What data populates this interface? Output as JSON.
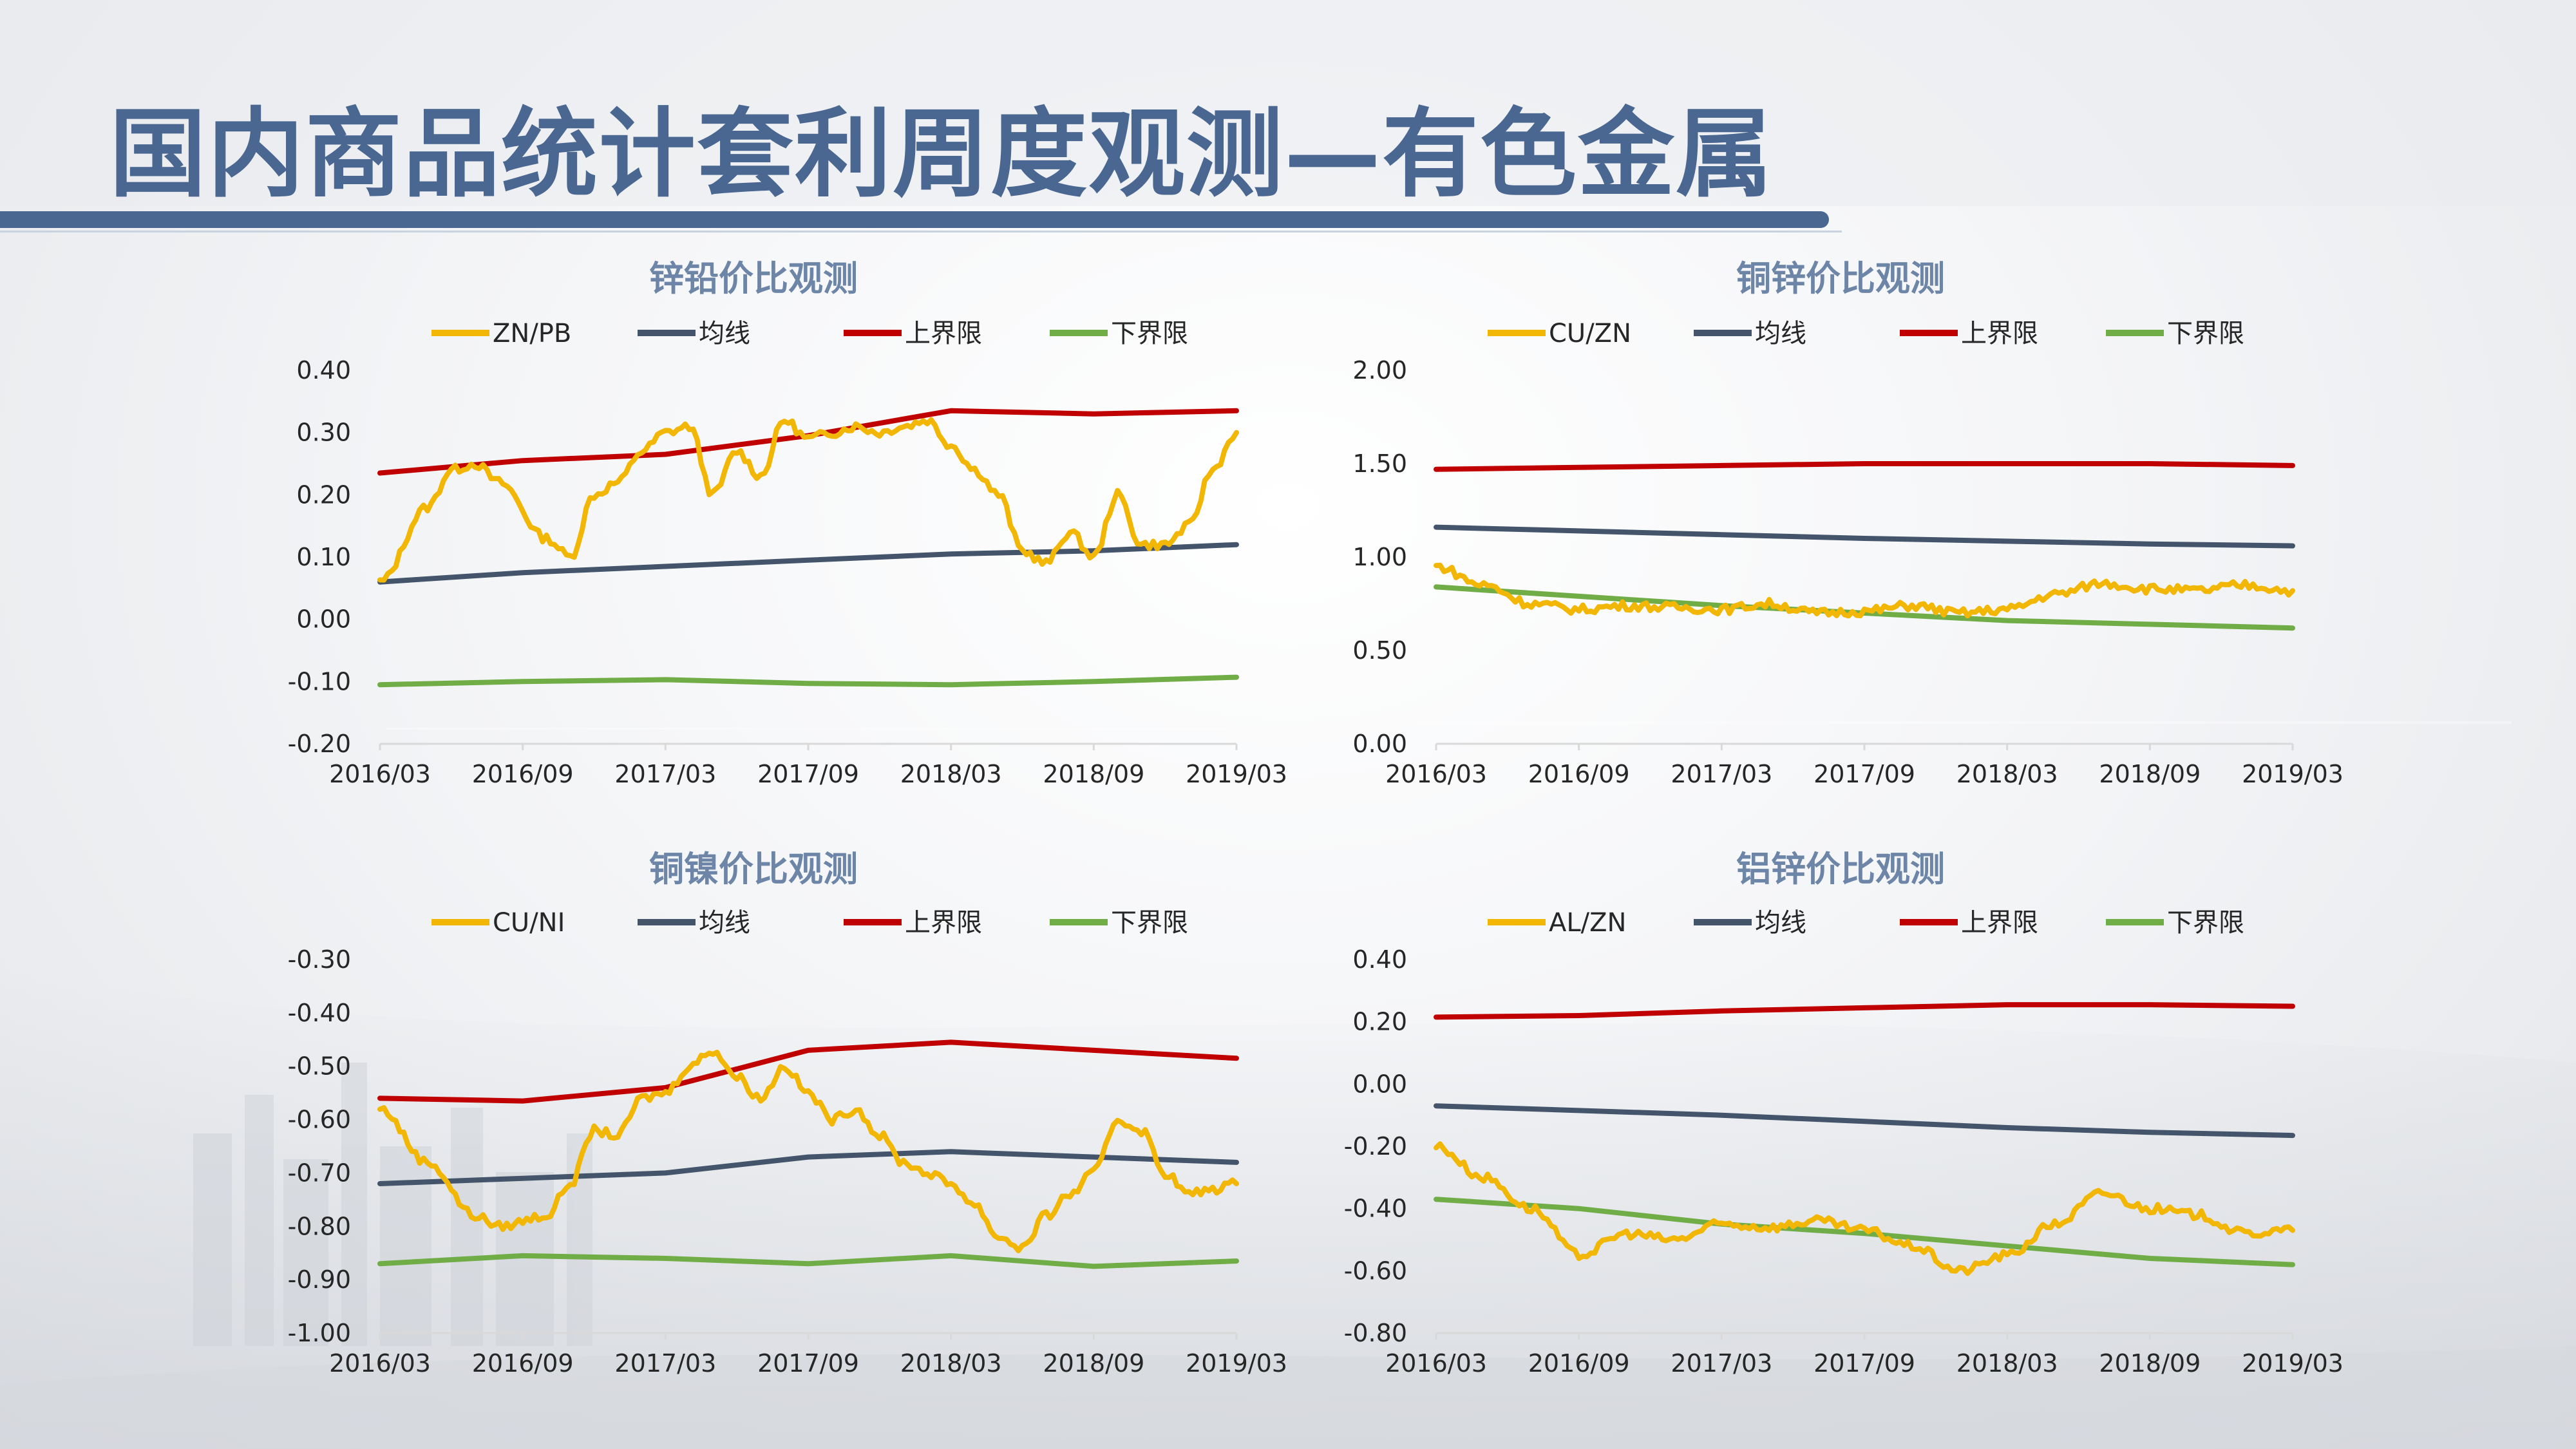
{
  "page": {
    "title": "国内商品统计套利周度观测—有色金属"
  },
  "colors": {
    "ratio": "#f2b705",
    "mean": "#44546a",
    "upper": "#c00000",
    "lower": "#70ad47",
    "title": "#4a6791",
    "chart_title": "#6d86a8"
  },
  "chart_data": [
    {
      "type": "line",
      "title": "锌铅价比观测",
      "x_ticks": [
        "2016/03",
        "2016/09",
        "2017/03",
        "2017/09",
        "2018/03",
        "2018/09",
        "2019/03"
      ],
      "x_range": [
        "2016/03",
        "2019/03"
      ],
      "ylim": [
        -0.2,
        0.4
      ],
      "y_ticks": [
        "0.40",
        "0.30",
        "0.20",
        "0.10",
        "0.00",
        "-0.10",
        "-0.20"
      ],
      "grid": false,
      "legend": "top",
      "series": [
        {
          "name": "ZN/PB",
          "role": "ratio",
          "x": [
            "2016/03",
            "2016/05",
            "2016/06",
            "2016/07",
            "2016/08",
            "2016/10",
            "2016/11",
            "2016/12",
            "2017/01",
            "2017/02",
            "2017/03",
            "2017/04",
            "2017/05",
            "2017/06",
            "2017/07",
            "2017/08",
            "2017/09",
            "2017/10",
            "2017/11",
            "2017/12",
            "2018/01",
            "2018/02",
            "2018/03",
            "2018/04",
            "2018/05",
            "2018/06",
            "2018/07",
            "2018/08",
            "2018/09",
            "2018/10",
            "2018/11",
            "2018/12",
            "2019/01",
            "2019/02",
            "2019/03"
          ],
          "y": [
            0.06,
            0.18,
            0.24,
            0.25,
            0.22,
            0.13,
            0.1,
            0.2,
            0.22,
            0.27,
            0.3,
            0.31,
            0.2,
            0.27,
            0.23,
            0.32,
            0.29,
            0.3,
            0.31,
            0.3,
            0.31,
            0.32,
            0.28,
            0.24,
            0.2,
            0.11,
            0.09,
            0.14,
            0.1,
            0.2,
            0.12,
            0.12,
            0.15,
            0.24,
            0.3
          ]
        },
        {
          "name": "均线",
          "role": "mean",
          "x": [
            "2016/03",
            "2016/09",
            "2017/03",
            "2017/09",
            "2018/03",
            "2018/09",
            "2019/03"
          ],
          "y": [
            0.06,
            0.075,
            0.085,
            0.095,
            0.105,
            0.11,
            0.12
          ]
        },
        {
          "name": "上界限",
          "role": "upper",
          "x": [
            "2016/03",
            "2016/09",
            "2017/03",
            "2017/09",
            "2018/03",
            "2018/09",
            "2019/03"
          ],
          "y": [
            0.235,
            0.255,
            0.265,
            0.295,
            0.335,
            0.33,
            0.335
          ]
        },
        {
          "name": "下界限",
          "role": "lower",
          "x": [
            "2016/03",
            "2016/09",
            "2017/03",
            "2017/09",
            "2018/03",
            "2018/09",
            "2019/03"
          ],
          "y": [
            -0.105,
            -0.1,
            -0.097,
            -0.103,
            -0.105,
            -0.1,
            -0.093
          ]
        }
      ]
    },
    {
      "type": "line",
      "title": "铜锌价比观测",
      "x_ticks": [
        "2016/03",
        "2016/09",
        "2017/03",
        "2017/09",
        "2018/03",
        "2018/09",
        "2019/03"
      ],
      "x_range": [
        "2016/03",
        "2019/03"
      ],
      "ylim": [
        0,
        2.0
      ],
      "y_ticks": [
        "2.00",
        "1.50",
        "1.00",
        "0.50",
        "0.00"
      ],
      "grid": false,
      "legend": "top",
      "series": [
        {
          "name": "CU/ZN",
          "role": "ratio",
          "x": [
            "2016/03",
            "2016/05",
            "2016/07",
            "2016/09",
            "2016/11",
            "2017/01",
            "2017/03",
            "2017/05",
            "2017/07",
            "2017/09",
            "2017/11",
            "2018/01",
            "2018/03",
            "2018/05",
            "2018/07",
            "2018/09",
            "2018/11",
            "2019/01",
            "2019/03"
          ],
          "y": [
            0.95,
            0.85,
            0.75,
            0.72,
            0.74,
            0.73,
            0.72,
            0.75,
            0.7,
            0.71,
            0.74,
            0.7,
            0.72,
            0.8,
            0.86,
            0.83,
            0.82,
            0.85,
            0.82
          ]
        },
        {
          "name": "均线",
          "role": "mean",
          "x": [
            "2016/03",
            "2016/09",
            "2017/03",
            "2017/09",
            "2018/03",
            "2018/09",
            "2019/03"
          ],
          "y": [
            1.16,
            1.14,
            1.12,
            1.1,
            1.085,
            1.07,
            1.06
          ]
        },
        {
          "name": "上界限",
          "role": "upper",
          "x": [
            "2016/03",
            "2016/09",
            "2017/03",
            "2017/09",
            "2018/03",
            "2018/09",
            "2019/03"
          ],
          "y": [
            1.47,
            1.48,
            1.49,
            1.5,
            1.5,
            1.5,
            1.49
          ]
        },
        {
          "name": "下界限",
          "role": "lower",
          "x": [
            "2016/03",
            "2016/09",
            "2017/03",
            "2017/09",
            "2018/03",
            "2018/09",
            "2019/03"
          ],
          "y": [
            0.84,
            0.79,
            0.74,
            0.7,
            0.66,
            0.64,
            0.62
          ]
        }
      ]
    },
    {
      "type": "line",
      "title": "铜镍价比观测",
      "x_ticks": [
        "2016/03",
        "2016/09",
        "2017/03",
        "2017/09",
        "2018/03",
        "2018/09",
        "2019/03"
      ],
      "x_range": [
        "2016/03",
        "2019/03"
      ],
      "ylim": [
        -1.0,
        -0.3
      ],
      "y_ticks": [
        "-0.30",
        "-0.40",
        "-0.50",
        "-0.60",
        "-0.70",
        "-0.80",
        "-0.90",
        "-1.00"
      ],
      "grid": false,
      "legend": "top",
      "series": [
        {
          "name": "CU/NI",
          "role": "ratio",
          "x": [
            "2016/03",
            "2016/05",
            "2016/07",
            "2016/08",
            "2016/10",
            "2016/11",
            "2016/12",
            "2017/01",
            "2017/02",
            "2017/03",
            "2017/04",
            "2017/05",
            "2017/06",
            "2017/07",
            "2017/08",
            "2017/09",
            "2017/10",
            "2017/11",
            "2017/12",
            "2018/01",
            "2018/02",
            "2018/03",
            "2018/04",
            "2018/05",
            "2018/06",
            "2018/07",
            "2018/08",
            "2018/09",
            "2018/10",
            "2018/11",
            "2018/12",
            "2019/01",
            "2019/02",
            "2019/03"
          ],
          "y": [
            -0.58,
            -0.68,
            -0.78,
            -0.8,
            -0.78,
            -0.72,
            -0.62,
            -0.63,
            -0.56,
            -0.55,
            -0.5,
            -0.47,
            -0.52,
            -0.56,
            -0.5,
            -0.55,
            -0.6,
            -0.58,
            -0.63,
            -0.68,
            -0.7,
            -0.72,
            -0.76,
            -0.82,
            -0.84,
            -0.78,
            -0.74,
            -0.7,
            -0.6,
            -0.62,
            -0.7,
            -0.74,
            -0.73,
            -0.72
          ]
        },
        {
          "name": "均线",
          "role": "mean",
          "x": [
            "2016/03",
            "2016/09",
            "2017/03",
            "2017/09",
            "2018/03",
            "2018/09",
            "2019/03"
          ],
          "y": [
            -0.72,
            -0.71,
            -0.7,
            -0.67,
            -0.66,
            -0.67,
            -0.68
          ]
        },
        {
          "name": "上界限",
          "role": "upper",
          "x": [
            "2016/03",
            "2016/09",
            "2017/03",
            "2017/09",
            "2018/03",
            "2018/09",
            "2019/03"
          ],
          "y": [
            -0.56,
            -0.565,
            -0.54,
            -0.47,
            -0.455,
            -0.47,
            -0.485
          ]
        },
        {
          "name": "下界限",
          "role": "lower",
          "x": [
            "2016/03",
            "2016/09",
            "2017/03",
            "2017/09",
            "2018/03",
            "2018/09",
            "2019/03"
          ],
          "y": [
            -0.87,
            -0.855,
            -0.86,
            -0.87,
            -0.855,
            -0.875,
            -0.865
          ]
        }
      ]
    },
    {
      "type": "line",
      "title": "铝锌价比观测",
      "x_ticks": [
        "2016/03",
        "2016/09",
        "2017/03",
        "2017/09",
        "2018/03",
        "2018/09",
        "2019/03"
      ],
      "x_range": [
        "2016/03",
        "2019/03"
      ],
      "ylim": [
        -0.8,
        0.4
      ],
      "y_ticks": [
        "0.40",
        "0.20",
        "0.00",
        "-0.20",
        "-0.40",
        "-0.60",
        "-0.80"
      ],
      "grid": false,
      "legend": "top",
      "series": [
        {
          "name": "AL/ZN",
          "role": "ratio",
          "x": [
            "2016/03",
            "2016/05",
            "2016/07",
            "2016/09",
            "2016/11",
            "2017/01",
            "2017/03",
            "2017/05",
            "2017/07",
            "2017/09",
            "2017/11",
            "2018/01",
            "2018/03",
            "2018/05",
            "2018/07",
            "2018/09",
            "2018/11",
            "2019/01",
            "2019/03"
          ],
          "y": [
            -0.2,
            -0.3,
            -0.4,
            -0.55,
            -0.48,
            -0.5,
            -0.45,
            -0.46,
            -0.44,
            -0.47,
            -0.52,
            -0.6,
            -0.55,
            -0.45,
            -0.35,
            -0.4,
            -0.42,
            -0.48,
            -0.47
          ]
        },
        {
          "name": "均线",
          "role": "mean",
          "x": [
            "2016/03",
            "2016/09",
            "2017/03",
            "2017/09",
            "2018/03",
            "2018/09",
            "2019/03"
          ],
          "y": [
            -0.07,
            -0.085,
            -0.1,
            -0.12,
            -0.14,
            -0.155,
            -0.165
          ]
        },
        {
          "name": "上界限",
          "role": "upper",
          "x": [
            "2016/03",
            "2016/09",
            "2017/03",
            "2017/09",
            "2018/03",
            "2018/09",
            "2019/03"
          ],
          "y": [
            0.215,
            0.22,
            0.235,
            0.245,
            0.255,
            0.255,
            0.25
          ]
        },
        {
          "name": "下界限",
          "role": "lower",
          "x": [
            "2016/03",
            "2016/09",
            "2017/03",
            "2017/09",
            "2018/03",
            "2018/09",
            "2019/03"
          ],
          "y": [
            -0.37,
            -0.4,
            -0.45,
            -0.48,
            -0.52,
            -0.56,
            -0.58
          ]
        }
      ]
    }
  ]
}
